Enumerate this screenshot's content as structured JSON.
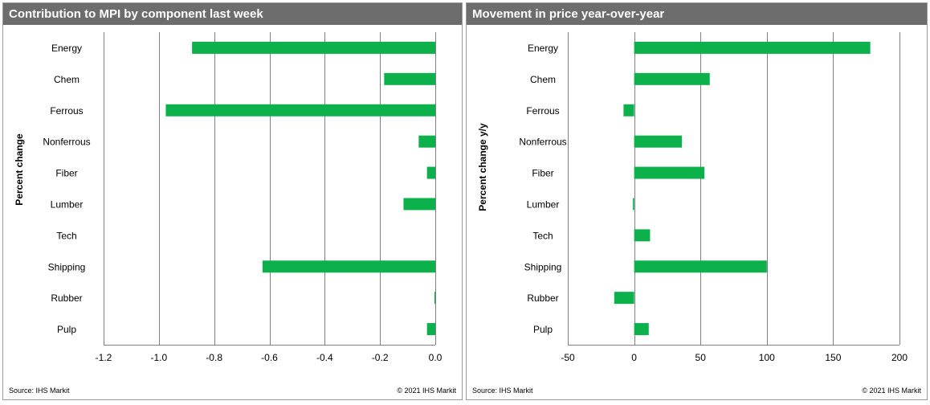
{
  "colors": {
    "bar": "#0db14b",
    "grid": "#808080",
    "header_bg": "#6d6d6d"
  },
  "chart_data": [
    {
      "type": "bar",
      "orientation": "horizontal",
      "title": "Contribution to MPI by component last week",
      "xlabel": "",
      "ylabel": "Percent change",
      "categories": [
        "Energy",
        "Chem",
        "Ferrous",
        "Nonferrous",
        "Fiber",
        "Lumber",
        "Tech",
        "Shipping",
        "Rubber",
        "Pulp"
      ],
      "values": [
        -0.88,
        -0.185,
        -0.975,
        -0.06,
        -0.03,
        -0.115,
        0.0,
        -0.625,
        -0.003,
        -0.03
      ],
      "xlim": [
        -1.2,
        0.0
      ],
      "xticks": [
        "-1.2",
        "-1.0",
        "-0.8",
        "-0.6",
        "-0.4",
        "-0.2",
        "0.0"
      ],
      "xtick_values": [
        -1.2,
        -1.0,
        -0.8,
        -0.6,
        -0.4,
        -0.2,
        0.0
      ],
      "grid": true,
      "source": "Source:  IHS Markit",
      "copyright": "© 2021  IHS Markit"
    },
    {
      "type": "bar",
      "orientation": "horizontal",
      "title": "Movement in price year-over-year",
      "xlabel": "",
      "ylabel": "Percent change y/y",
      "categories": [
        "Energy",
        "Chem",
        "Ferrous",
        "Nonferrous",
        "Fiber",
        "Lumber",
        "Tech",
        "Shipping",
        "Rubber",
        "Pulp"
      ],
      "values": [
        178,
        57,
        -8,
        36,
        53,
        -1,
        12,
        100,
        -15,
        11
      ],
      "xlim": [
        -50,
        200
      ],
      "xticks": [
        "-50",
        "0",
        "50",
        "100",
        "150",
        "200"
      ],
      "xtick_values": [
        -50,
        0,
        50,
        100,
        150,
        200
      ],
      "grid": true,
      "source": "Source:  IHS Markit",
      "copyright": "© 2021  IHS Markit"
    }
  ]
}
